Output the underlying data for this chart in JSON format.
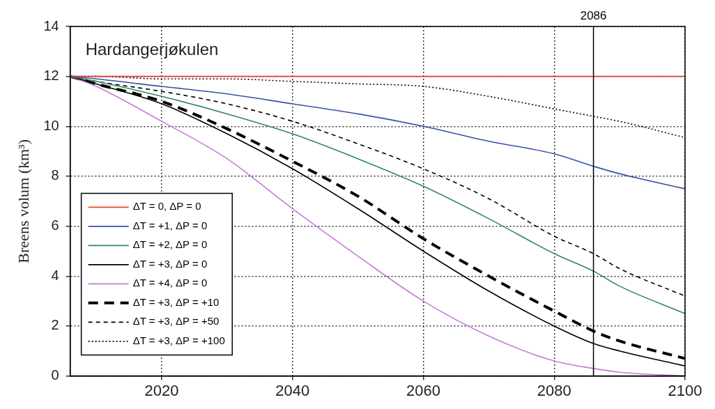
{
  "chart_data": {
    "type": "line",
    "ylabel": "Breens volum (km³)",
    "annotations": [
      "Hardangerjøkulen"
    ],
    "x": [
      2006,
      2010,
      2020,
      2030,
      2040,
      2050,
      2060,
      2070,
      2080,
      2086,
      2090,
      2100
    ],
    "xlim": [
      2006,
      2100
    ],
    "xticks": [
      2020,
      2040,
      2060,
      2080,
      2100
    ],
    "ylim": [
      0,
      14
    ],
    "yticks": [
      0,
      2,
      4,
      6,
      8,
      10,
      12,
      14
    ],
    "grid": true,
    "legend": "bottom left",
    "marker": "none",
    "ref_lines": [
      {
        "axis": "x",
        "value": 2086,
        "label": "2086",
        "color": "#000000",
        "line_style": "solid"
      }
    ],
    "series": [
      {
        "name": "ΔT = 0, ΔP = 0",
        "color": "#e8452c",
        "line_style": "solid",
        "values": [
          12,
          12,
          12,
          12,
          12,
          12,
          12,
          12,
          12,
          12,
          12,
          12
        ]
      },
      {
        "name": "ΔT = +1, ΔP = 0",
        "color": "#3a4fa8",
        "line_style": "solid",
        "values": [
          12,
          11.9,
          11.6,
          11.3,
          10.9,
          10.5,
          10.0,
          9.4,
          8.9,
          8.4,
          8.1,
          7.5
        ]
      },
      {
        "name": "ΔT = +2, ΔP = 0",
        "color": "#2e8b57",
        "line_style": "solid",
        "values": [
          12,
          11.8,
          11.2,
          10.5,
          9.7,
          8.7,
          7.6,
          6.3,
          4.9,
          4.2,
          3.6,
          2.5
        ]
      },
      {
        "name": "ΔT = +3, ΔP = 0",
        "color": "#000000",
        "line_style": "solid",
        "values": [
          12,
          11.7,
          10.9,
          9.7,
          8.3,
          6.7,
          5.0,
          3.4,
          2.0,
          1.3,
          1.0,
          0.4
        ]
      },
      {
        "name": "ΔT = +4, ΔP = 0",
        "color": "#c77ad8",
        "line_style": "solid",
        "values": [
          12,
          11.6,
          10.2,
          8.7,
          6.7,
          4.8,
          3.0,
          1.6,
          0.6,
          0.3,
          0.15,
          0
        ]
      },
      {
        "name": "ΔT = +3, ΔP = +10",
        "color": "#000000",
        "line_style": "dashed",
        "values": [
          12,
          11.7,
          11.0,
          9.9,
          8.6,
          7.2,
          5.5,
          4.0,
          2.6,
          1.8,
          1.4,
          0.7
        ]
      },
      {
        "name": "ΔT = +3, ΔP = +50",
        "color": "#000000",
        "line_style": "dashed",
        "values": [
          12,
          11.8,
          11.4,
          10.9,
          10.2,
          9.3,
          8.3,
          7.1,
          5.6,
          4.9,
          4.3,
          3.2
        ]
      },
      {
        "name": "ΔT = +3, ΔP = +100",
        "color": "#000000",
        "line_style": "dotted",
        "values": [
          12,
          12.0,
          11.9,
          11.9,
          11.8,
          11.7,
          11.6,
          11.2,
          10.7,
          10.4,
          10.2,
          9.55
        ]
      }
    ]
  }
}
